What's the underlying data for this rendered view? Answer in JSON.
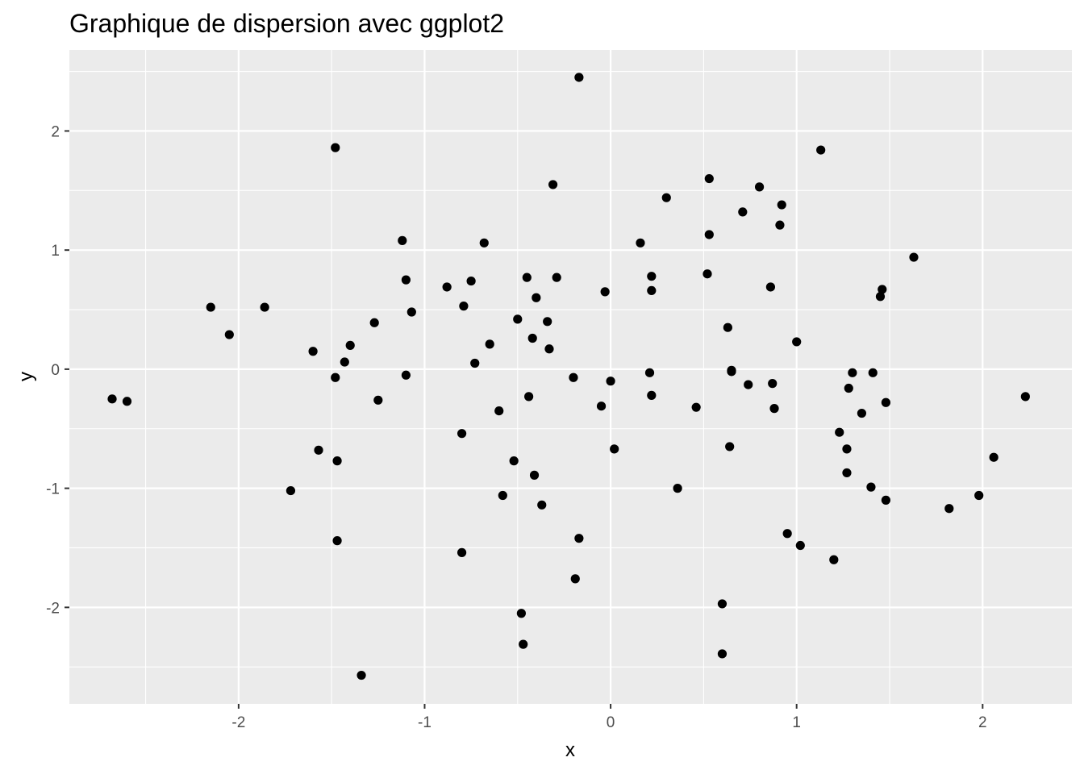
{
  "chart_data": {
    "type": "scatter",
    "title": "Graphique de dispersion avec ggplot2",
    "xlabel": "x",
    "ylabel": "y",
    "xlim": [
      -2.91,
      2.48
    ],
    "ylim": [
      -2.81,
      2.68
    ],
    "x_ticks": [
      -2,
      -1,
      0,
      1,
      2
    ],
    "x_tick_labels": [
      "-2",
      "-1",
      "0",
      "1",
      "2"
    ],
    "y_ticks": [
      -2,
      -1,
      0,
      1,
      2
    ],
    "y_tick_labels": [
      "-2",
      "-1",
      "0",
      "1",
      "2"
    ],
    "grid": true,
    "colors": {
      "panel": "#ebebeb",
      "grid": "#ffffff",
      "point": "#000000",
      "tick": "#333333"
    },
    "points": [
      [
        -2.68,
        -0.25
      ],
      [
        -2.6,
        -0.27
      ],
      [
        -2.15,
        0.52
      ],
      [
        -2.05,
        0.29
      ],
      [
        -1.86,
        0.52
      ],
      [
        -1.72,
        -1.02
      ],
      [
        -1.6,
        0.15
      ],
      [
        -1.57,
        -0.68
      ],
      [
        -1.48,
        -0.07
      ],
      [
        -1.47,
        -0.77
      ],
      [
        -1.47,
        -1.44
      ],
      [
        -1.48,
        1.86
      ],
      [
        -1.43,
        0.06
      ],
      [
        -1.4,
        0.2
      ],
      [
        -1.27,
        0.39
      ],
      [
        -1.25,
        -0.26
      ],
      [
        -1.34,
        -2.57
      ],
      [
        -1.12,
        1.08
      ],
      [
        -1.1,
        0.75
      ],
      [
        -1.1,
        -0.05
      ],
      [
        -1.07,
        0.48
      ],
      [
        -0.88,
        0.69
      ],
      [
        -0.79,
        0.53
      ],
      [
        -0.8,
        -0.54
      ],
      [
        -0.8,
        -1.54
      ],
      [
        -0.75,
        0.74
      ],
      [
        -0.73,
        0.05
      ],
      [
        -0.68,
        1.06
      ],
      [
        -0.65,
        0.21
      ],
      [
        -0.6,
        -0.35
      ],
      [
        -0.58,
        -1.06
      ],
      [
        -0.52,
        -0.77
      ],
      [
        -0.5,
        0.42
      ],
      [
        -0.48,
        -2.05
      ],
      [
        -0.47,
        -2.31
      ],
      [
        -0.45,
        0.77
      ],
      [
        -0.44,
        -0.23
      ],
      [
        -0.42,
        0.26
      ],
      [
        -0.4,
        0.6
      ],
      [
        -0.41,
        -0.89
      ],
      [
        -0.37,
        -1.14
      ],
      [
        -0.34,
        0.4
      ],
      [
        -0.33,
        0.17
      ],
      [
        -0.31,
        1.55
      ],
      [
        -0.29,
        0.77
      ],
      [
        -0.2,
        -0.07
      ],
      [
        -0.19,
        -1.76
      ],
      [
        -0.17,
        -1.42
      ],
      [
        -0.17,
        2.45
      ],
      [
        -0.05,
        -0.31
      ],
      [
        -0.03,
        0.65
      ],
      [
        0.0,
        -0.1
      ],
      [
        0.02,
        -0.67
      ],
      [
        0.16,
        1.06
      ],
      [
        0.21,
        -0.03
      ],
      [
        0.22,
        0.78
      ],
      [
        0.22,
        0.66
      ],
      [
        0.22,
        -0.22
      ],
      [
        0.3,
        1.44
      ],
      [
        0.36,
        -1.0
      ],
      [
        0.46,
        -0.32
      ],
      [
        0.52,
        0.8
      ],
      [
        0.53,
        1.6
      ],
      [
        0.53,
        1.13
      ],
      [
        0.6,
        -1.97
      ],
      [
        0.6,
        -2.39
      ],
      [
        0.63,
        0.35
      ],
      [
        0.64,
        -0.65
      ],
      [
        0.65,
        -0.01
      ],
      [
        0.65,
        -0.02
      ],
      [
        0.71,
        1.32
      ],
      [
        0.74,
        -0.13
      ],
      [
        0.8,
        1.53
      ],
      [
        0.86,
        0.69
      ],
      [
        0.87,
        -0.12
      ],
      [
        0.88,
        -0.33
      ],
      [
        0.91,
        1.21
      ],
      [
        0.92,
        1.38
      ],
      [
        0.95,
        -1.38
      ],
      [
        1.0,
        0.23
      ],
      [
        1.02,
        -1.48
      ],
      [
        1.13,
        1.84
      ],
      [
        1.2,
        -1.6
      ],
      [
        1.23,
        -0.53
      ],
      [
        1.27,
        -0.67
      ],
      [
        1.27,
        -0.87
      ],
      [
        1.28,
        -0.16
      ],
      [
        1.3,
        -0.03
      ],
      [
        1.35,
        -0.37
      ],
      [
        1.4,
        -0.99
      ],
      [
        1.41,
        -0.03
      ],
      [
        1.45,
        0.61
      ],
      [
        1.46,
        0.67
      ],
      [
        1.48,
        -0.28
      ],
      [
        1.48,
        -1.1
      ],
      [
        1.63,
        0.94
      ],
      [
        1.82,
        -1.17
      ],
      [
        1.98,
        -1.06
      ],
      [
        2.06,
        -0.74
      ],
      [
        2.23,
        -0.23
      ]
    ]
  }
}
